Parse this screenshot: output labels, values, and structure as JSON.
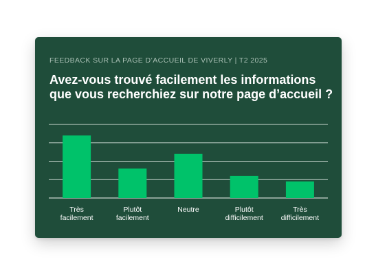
{
  "header": {
    "eyebrow": "FEEDBACK SUR LA PAGE D’ACCUEIL DE VIVERLY | T2 2025",
    "title": "Avez-vous trouvé facilement les informations que vous recherchiez sur notre page d’accueil ?"
  },
  "colors": {
    "card_background": "#1f4d3a",
    "bar": "#00c26a",
    "gridline": "#c9d6cf",
    "text": "#ffffff",
    "eyebrow": "#a9bfb4"
  },
  "chart_data": {
    "type": "bar",
    "title": "Avez-vous trouvé facilement les informations que vous recherchiez sur notre page d’accueil ?",
    "categories": [
      [
        "Très",
        "facilement"
      ],
      [
        "Plutôt",
        "facilement"
      ],
      [
        "Neutre"
      ],
      [
        "Plutôt",
        "difficilement"
      ],
      [
        "Très",
        "difficilement"
      ]
    ],
    "values": [
      34,
      16,
      24,
      12,
      9
    ],
    "ylim": [
      0,
      40
    ],
    "grid": true,
    "gridlines": 5,
    "axis_labels_shown": false,
    "xlabel": "",
    "ylabel": ""
  }
}
